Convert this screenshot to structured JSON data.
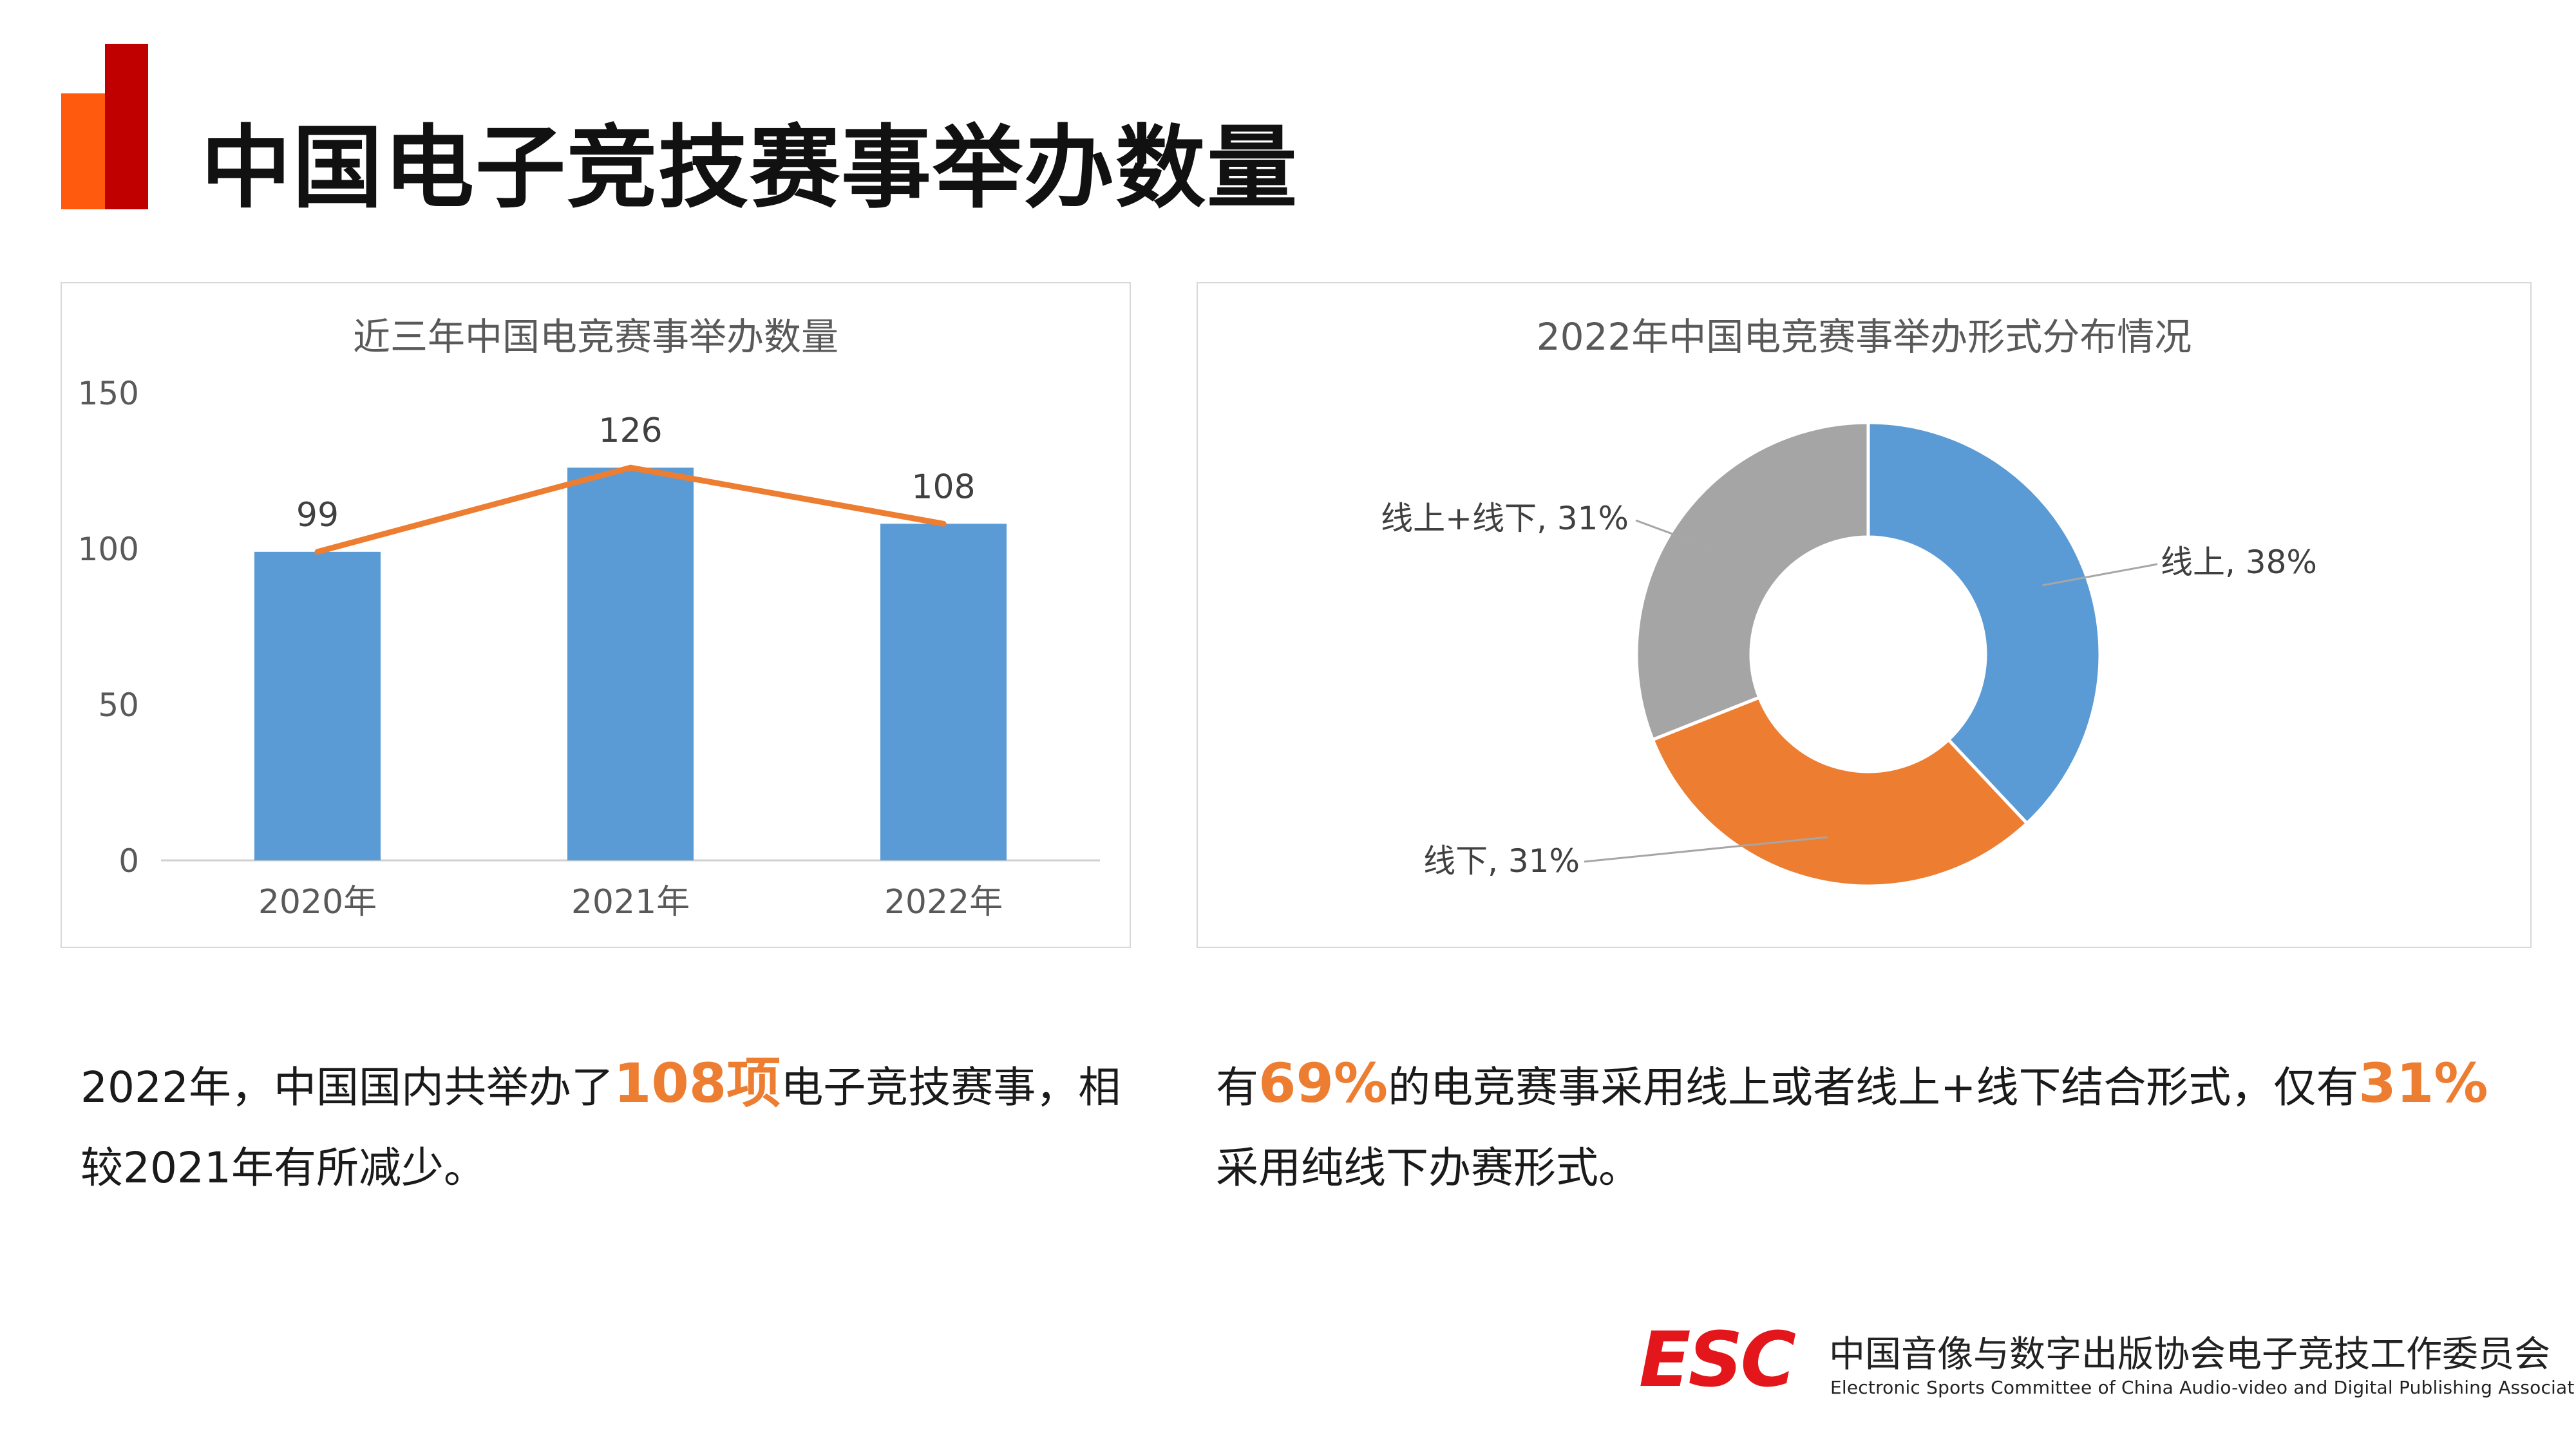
{
  "header": {
    "title": "中国电子竞技赛事举办数量",
    "accent_colors": [
      "#FF5A0E",
      "#C00000"
    ]
  },
  "chart_data": [
    {
      "type": "bar",
      "title": "近三年中国电竞赛事举办数量",
      "categories": [
        "2020年",
        "2021年",
        "2022年"
      ],
      "values": [
        99,
        126,
        108
      ],
      "data_labels": [
        "99",
        "126",
        "108"
      ],
      "overlay_line": {
        "values": [
          99,
          126,
          108
        ],
        "color": "#ED7D31"
      },
      "bar_color": "#5B9BD5",
      "ylim": [
        0,
        150
      ],
      "yticks": [
        0,
        50,
        100,
        150
      ],
      "ytick_labels": [
        "0",
        "50",
        "100",
        "150"
      ],
      "grid": false,
      "legend": false
    },
    {
      "type": "pie",
      "donut": true,
      "title": "2022年中国电竞赛事举办形式分布情况",
      "slices": [
        {
          "label": "线上",
          "value": 38,
          "text": "线上, 38%",
          "color": "#5B9BD5"
        },
        {
          "label": "线下",
          "value": 31,
          "text": "线下, 31%",
          "color": "#ED7D31"
        },
        {
          "label": "线上+线下",
          "value": 31,
          "text": "线上+线下, 31%",
          "color": "#A5A5A5"
        }
      ],
      "legend": false
    }
  ],
  "text": {
    "left": {
      "part1": "2022年，中国国内共举办了",
      "highlight": "108项",
      "part2": "电子竞技赛事，相较2021年有所减少。"
    },
    "right": {
      "part1": "有",
      "highlight1": "69%",
      "part2": "的电竞赛事采用线上或者线上+线下结合形式，仅有",
      "highlight2": "31%",
      "part3": "采用纯线下办赛形式。"
    },
    "highlight_color": "#ED7D31"
  },
  "footer": {
    "logo_text": "ESC",
    "logo_color": "#E2161B",
    "org_cn": "中国音像与数字出版协会电子竞技工作委员会",
    "org_en": "Electronic Sports Committee of China Audio-video and Digital Publishing Association"
  }
}
